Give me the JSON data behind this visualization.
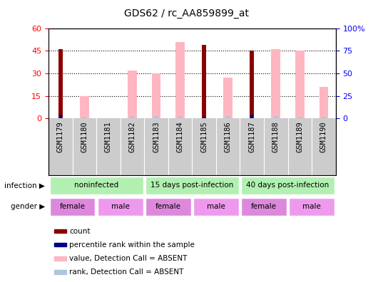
{
  "title": "GDS62 / rc_AA859899_at",
  "samples": [
    "GSM1179",
    "GSM1180",
    "GSM1181",
    "GSM1182",
    "GSM1183",
    "GSM1184",
    "GSM1185",
    "GSM1186",
    "GSM1187",
    "GSM1188",
    "GSM1189",
    "GSM1190"
  ],
  "count_values": [
    46,
    0,
    0,
    0,
    0,
    0,
    49,
    0,
    45,
    0,
    0,
    0
  ],
  "rank_values": [
    4,
    0,
    0,
    0,
    0,
    0,
    2,
    0,
    4,
    0,
    0,
    0
  ],
  "absent_value_values": [
    0,
    15,
    0,
    32,
    30,
    51,
    0,
    27,
    0,
    46,
    45,
    21
  ],
  "absent_rank_values": [
    0,
    2,
    0,
    3,
    3,
    3,
    0,
    3,
    0,
    3,
    2,
    2
  ],
  "left_ylim": [
    0,
    60
  ],
  "right_ylim": [
    0,
    100
  ],
  "left_yticks": [
    0,
    15,
    30,
    45,
    60
  ],
  "right_yticks": [
    0,
    25,
    50,
    75,
    100
  ],
  "left_ytick_labels": [
    "0",
    "15",
    "30",
    "45",
    "60"
  ],
  "right_ytick_labels": [
    "0",
    "25",
    "50",
    "75",
    "100%"
  ],
  "infect_spans": [
    {
      "label": "noninfected",
      "start": 0,
      "end": 4,
      "color": "#b2f0b2"
    },
    {
      "label": "15 days post-infection",
      "start": 4,
      "end": 8,
      "color": "#b2f0b2"
    },
    {
      "label": "40 days post-infection",
      "start": 8,
      "end": 12,
      "color": "#b2f0b2"
    }
  ],
  "gender_spans": [
    {
      "label": "female",
      "start": 0,
      "end": 2,
      "color": "#dd88dd"
    },
    {
      "label": "male",
      "start": 2,
      "end": 4,
      "color": "#ee99ee"
    },
    {
      "label": "female",
      "start": 4,
      "end": 6,
      "color": "#dd88dd"
    },
    {
      "label": "male",
      "start": 6,
      "end": 8,
      "color": "#ee99ee"
    },
    {
      "label": "female",
      "start": 8,
      "end": 10,
      "color": "#dd88dd"
    },
    {
      "label": "male",
      "start": 10,
      "end": 12,
      "color": "#ee99ee"
    }
  ],
  "color_count": "#8B0000",
  "color_rank": "#00008B",
  "color_absent_value": "#FFB6C1",
  "color_absent_rank": "#B0C4DE",
  "color_sample_bg": "#cccccc",
  "title_fontsize": 10,
  "legend_fontsize": 7.5,
  "tick_fontsize": 7.5
}
